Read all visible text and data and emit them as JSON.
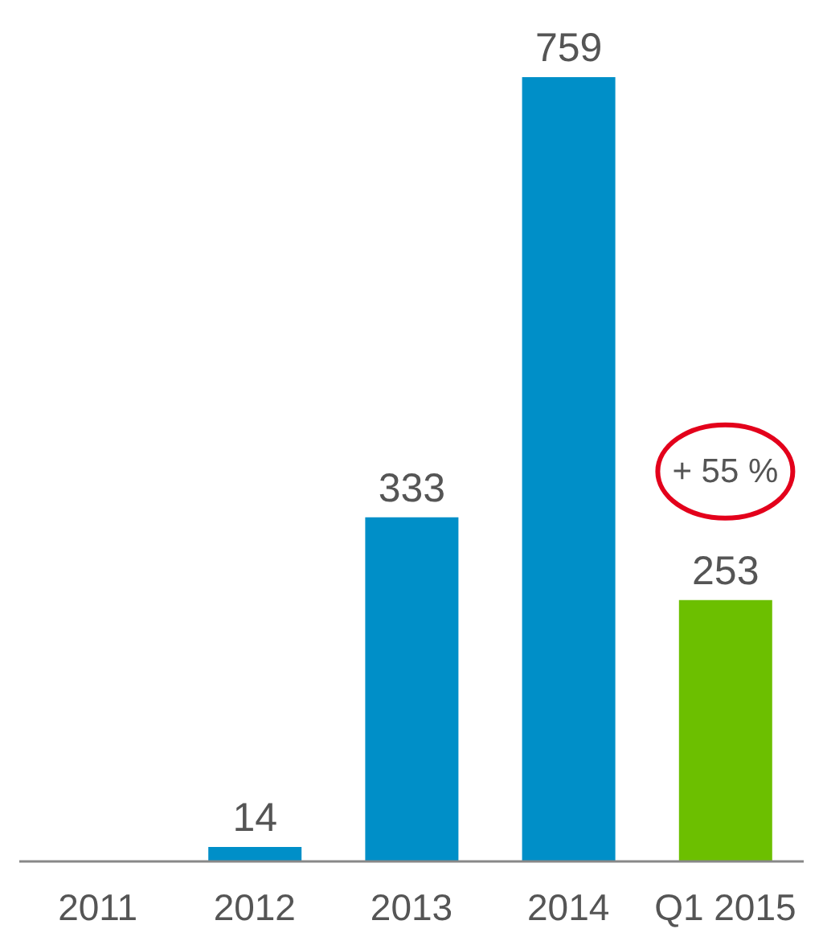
{
  "chart_data": {
    "type": "bar",
    "categories": [
      "2011",
      "2012",
      "2013",
      "2014",
      "Q1 2015"
    ],
    "values": [
      null,
      14,
      333,
      759,
      253
    ],
    "colors": [
      "#008fc8",
      "#008fc8",
      "#008fc8",
      "#008fc8",
      "#6cbf00"
    ],
    "data_labels": true,
    "grid": false,
    "legend": false,
    "annotations": [
      "+ 55 %"
    ]
  }
}
